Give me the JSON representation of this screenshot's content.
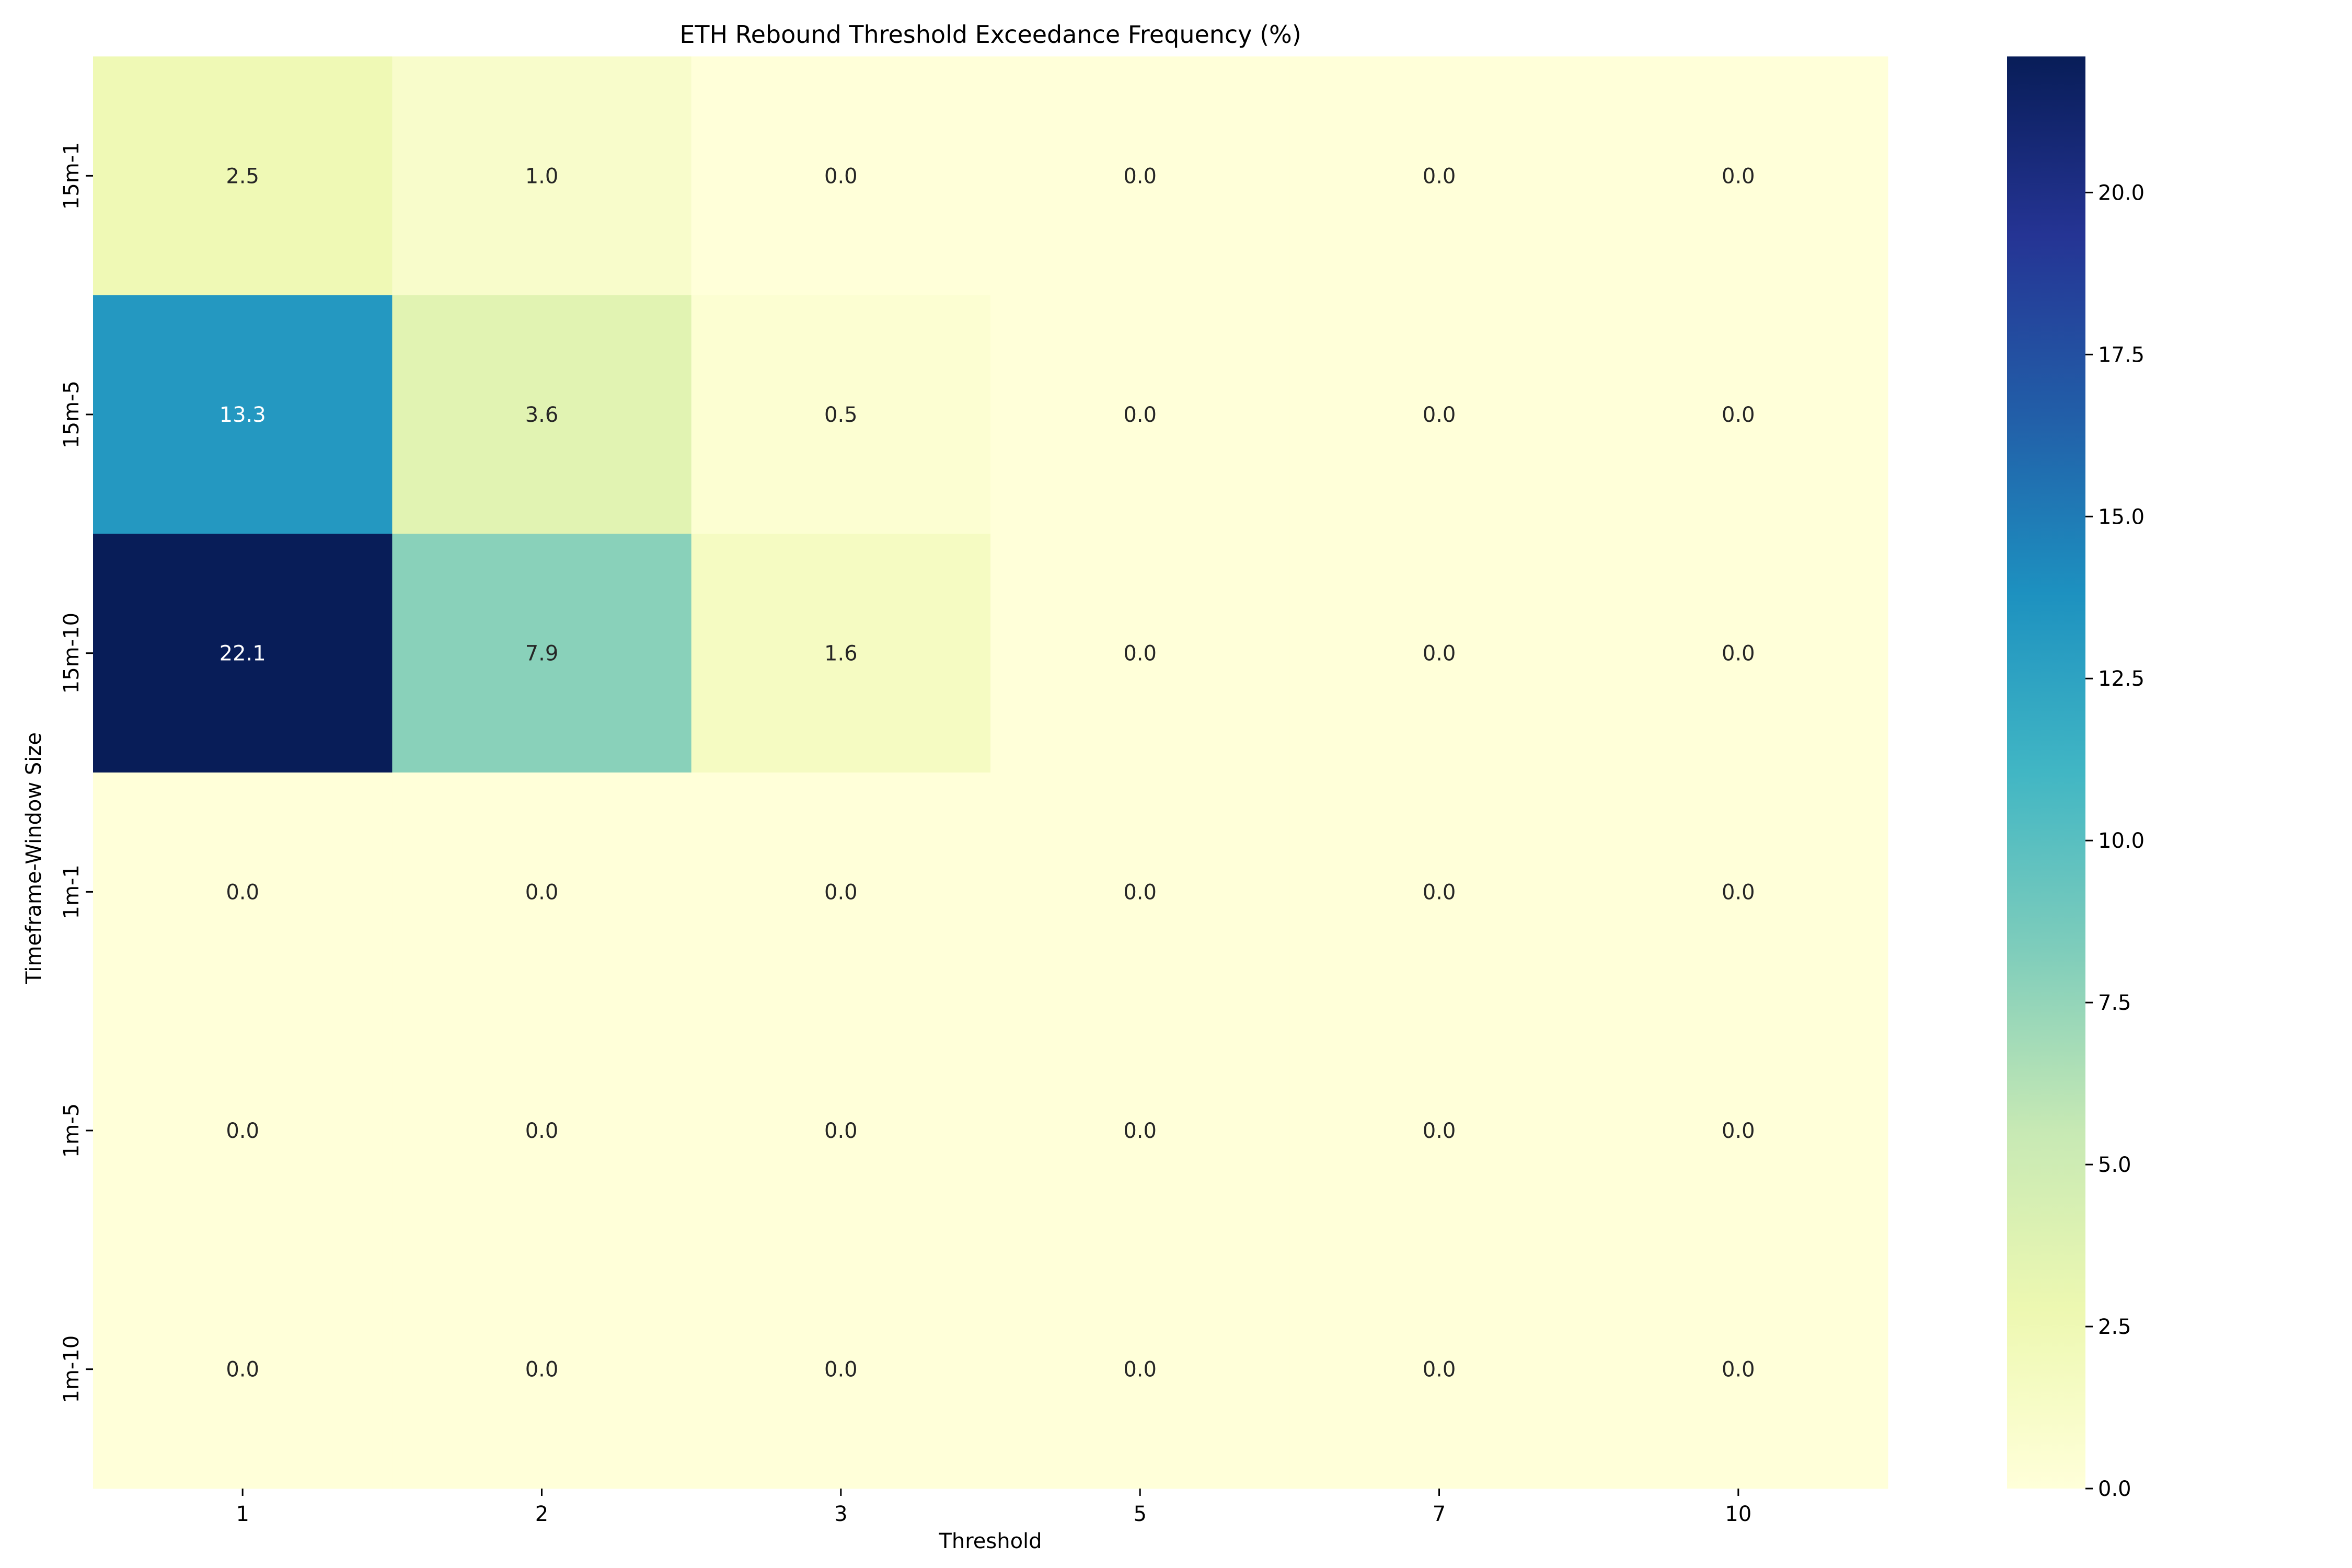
{
  "chart_data": {
    "type": "heatmap",
    "title": "ETH Rebound Threshold Exceedance Frequency (%)",
    "xlabel": "Threshold",
    "ylabel": "Timeframe-Window Size",
    "x_categories": [
      "1",
      "2",
      "3",
      "5",
      "7",
      "10"
    ],
    "y_categories": [
      "15m-1",
      "15m-5",
      "15m-10",
      "1m-1",
      "1m-5",
      "1m-10"
    ],
    "values": [
      [
        2.5,
        1.0,
        0.0,
        0.0,
        0.0,
        0.0
      ],
      [
        13.3,
        3.6,
        0.5,
        0.0,
        0.0,
        0.0
      ],
      [
        22.1,
        7.9,
        1.6,
        0.0,
        0.0,
        0.0
      ],
      [
        0.0,
        0.0,
        0.0,
        0.0,
        0.0,
        0.0
      ],
      [
        0.0,
        0.0,
        0.0,
        0.0,
        0.0,
        0.0
      ],
      [
        0.0,
        0.0,
        0.0,
        0.0,
        0.0,
        0.0
      ]
    ],
    "value_labels": [
      [
        "2.5",
        "1.0",
        "0.0",
        "0.0",
        "0.0",
        "0.0"
      ],
      [
        "13.3",
        "3.6",
        "0.5",
        "0.0",
        "0.0",
        "0.0"
      ],
      [
        "22.1",
        "7.9",
        "1.6",
        "0.0",
        "0.0",
        "0.0"
      ],
      [
        "0.0",
        "0.0",
        "0.0",
        "0.0",
        "0.0",
        "0.0"
      ],
      [
        "0.0",
        "0.0",
        "0.0",
        "0.0",
        "0.0",
        "0.0"
      ],
      [
        "0.0",
        "0.0",
        "0.0",
        "0.0",
        "0.0",
        "0.0"
      ]
    ],
    "colorbar": {
      "range": [
        0.0,
        22.1
      ],
      "ticks": [
        0.0,
        2.5,
        5.0,
        7.5,
        10.0,
        12.5,
        15.0,
        17.5,
        20.0
      ],
      "tick_labels": [
        "0.0",
        "2.5",
        "5.0",
        "7.5",
        "10.0",
        "12.5",
        "15.0",
        "17.5",
        "20.0"
      ],
      "colormap": "YlGnBu",
      "stops": [
        "#ffffd9",
        "#edf8b1",
        "#c7e9b4",
        "#7fcdbb",
        "#41b6c4",
        "#1d91c0",
        "#225ea8",
        "#253494",
        "#081d58"
      ]
    }
  }
}
